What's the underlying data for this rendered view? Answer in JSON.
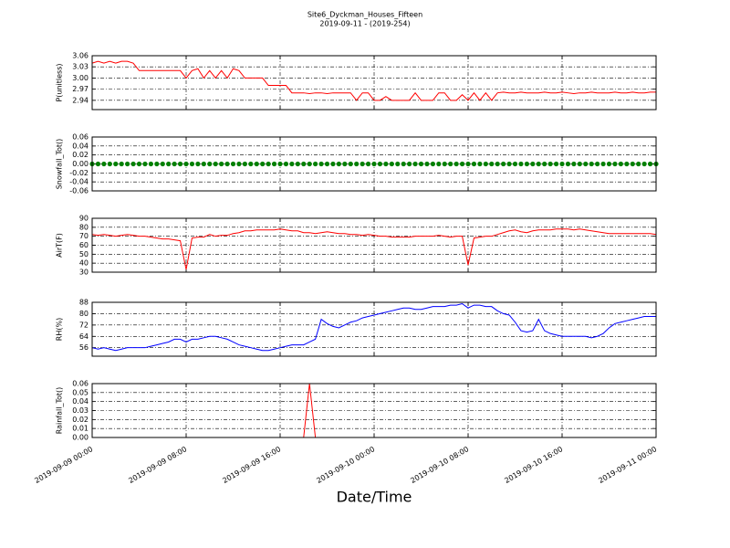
{
  "title": "Site6_Dyckman_Houses_Fifteen",
  "subtitle": "2019-09-11 - (2019-254)",
  "xlabel": "Date/Time",
  "xlim": [
    "2019-09-09 00:00",
    "2019-09-11 00:00"
  ],
  "xticks": [
    "2019-09-09 00:00",
    "2019-09-09 08:00",
    "2019-09-09 16:00",
    "2019-09-10 00:00",
    "2019-09-10 08:00",
    "2019-09-10 16:00",
    "2019-09-11 00:00"
  ],
  "grid": true,
  "x": [
    "2019-09-09 00:00",
    "2019-09-09 00:30",
    "2019-09-09 01:00",
    "2019-09-09 01:30",
    "2019-09-09 02:00",
    "2019-09-09 02:30",
    "2019-09-09 03:00",
    "2019-09-09 03:30",
    "2019-09-09 04:00",
    "2019-09-09 04:30",
    "2019-09-09 05:00",
    "2019-09-09 05:30",
    "2019-09-09 06:00",
    "2019-09-09 06:30",
    "2019-09-09 07:00",
    "2019-09-09 07:30",
    "2019-09-09 08:00",
    "2019-09-09 08:30",
    "2019-09-09 09:00",
    "2019-09-09 09:30",
    "2019-09-09 10:00",
    "2019-09-09 10:30",
    "2019-09-09 11:00",
    "2019-09-09 11:30",
    "2019-09-09 12:00",
    "2019-09-09 12:30",
    "2019-09-09 13:00",
    "2019-09-09 13:30",
    "2019-09-09 14:00",
    "2019-09-09 14:30",
    "2019-09-09 15:00",
    "2019-09-09 15:30",
    "2019-09-09 16:00",
    "2019-09-09 16:30",
    "2019-09-09 17:00",
    "2019-09-09 17:30",
    "2019-09-09 18:00",
    "2019-09-09 18:30",
    "2019-09-09 19:00",
    "2019-09-09 19:30",
    "2019-09-09 20:00",
    "2019-09-09 20:30",
    "2019-09-09 21:00",
    "2019-09-09 21:30",
    "2019-09-09 22:00",
    "2019-09-09 22:30",
    "2019-09-09 23:00",
    "2019-09-09 23:30",
    "2019-09-10 00:00",
    "2019-09-10 00:30",
    "2019-09-10 01:00",
    "2019-09-10 01:30",
    "2019-09-10 02:00",
    "2019-09-10 02:30",
    "2019-09-10 03:00",
    "2019-09-10 03:30",
    "2019-09-10 04:00",
    "2019-09-10 04:30",
    "2019-09-10 05:00",
    "2019-09-10 05:30",
    "2019-09-10 06:00",
    "2019-09-10 06:30",
    "2019-09-10 07:00",
    "2019-09-10 07:30",
    "2019-09-10 08:00",
    "2019-09-10 08:30",
    "2019-09-10 09:00",
    "2019-09-10 09:30",
    "2019-09-10 10:00",
    "2019-09-10 10:30",
    "2019-09-10 11:00",
    "2019-09-10 11:30",
    "2019-09-10 12:00",
    "2019-09-10 12:30",
    "2019-09-10 13:00",
    "2019-09-10 13:30",
    "2019-09-10 14:00",
    "2019-09-10 14:30",
    "2019-09-10 15:00",
    "2019-09-10 15:30",
    "2019-09-10 16:00",
    "2019-09-10 16:30",
    "2019-09-10 17:00",
    "2019-09-10 17:30",
    "2019-09-10 18:00",
    "2019-09-10 18:30",
    "2019-09-10 19:00",
    "2019-09-10 19:30",
    "2019-09-10 20:00",
    "2019-09-10 20:30",
    "2019-09-10 21:00",
    "2019-09-10 21:30",
    "2019-09-10 22:00",
    "2019-09-10 22:30",
    "2019-09-10 23:00",
    "2019-09-10 23:30",
    "2019-09-11 00:00"
  ],
  "chart_data": [
    {
      "type": "line",
      "ylabel": "P(unitless)",
      "color": "#ff0000",
      "ylim": [
        2.915,
        3.06
      ],
      "yticks": [
        2.94,
        2.97,
        {
          "value": 3,
          "label": "3.00"
        },
        3.03,
        3.06
      ],
      "values": [
        3.04,
        3.045,
        3.04,
        3.045,
        3.04,
        3.045,
        3.045,
        3.04,
        3.02,
        3.02,
        3.02,
        3.02,
        3.02,
        3.02,
        3.02,
        3.02,
        3.0,
        3.02,
        3.025,
        3.0,
        3.02,
        3.0,
        3.02,
        3.0,
        3.025,
        3.02,
        3.0,
        3.0,
        3.0,
        3.0,
        2.98,
        2.98,
        2.98,
        2.98,
        2.96,
        2.96,
        2.96,
        2.958,
        2.96,
        2.96,
        2.958,
        2.96,
        2.96,
        2.96,
        2.96,
        2.94,
        2.96,
        2.96,
        2.94,
        2.94,
        2.95,
        2.94,
        2.94,
        2.94,
        2.94,
        2.96,
        2.94,
        2.94,
        2.94,
        2.96,
        2.96,
        2.94,
        2.94,
        2.955,
        2.94,
        2.96,
        2.94,
        2.96,
        2.94,
        2.96,
        2.962,
        2.96,
        2.96,
        2.962,
        2.96,
        2.96,
        2.96,
        2.962,
        2.96,
        2.96,
        2.962,
        2.96,
        2.958,
        2.96,
        2.96,
        2.962,
        2.96,
        2.96,
        2.96,
        2.962,
        2.96,
        2.96,
        2.962,
        2.96,
        2.96,
        2.962,
        2.962
      ]
    },
    {
      "type": "scatter",
      "ylabel": "Snowfall_Tot()",
      "color": "#008000",
      "ylim": [
        -0.06,
        0.06
      ],
      "yticks": [
        -0.06,
        -0.04,
        -0.02,
        {
          "value": 0,
          "label": "0.00"
        },
        0.02,
        0.04,
        0.06
      ],
      "values": [
        0,
        0,
        0,
        0,
        0,
        0,
        0,
        0,
        0,
        0,
        0,
        0,
        0,
        0,
        0,
        0,
        0,
        0,
        0,
        0,
        0,
        0,
        0,
        0,
        0,
        0,
        0,
        0,
        0,
        0,
        0,
        0,
        0,
        0,
        0,
        0,
        0,
        0,
        0,
        0,
        0,
        0,
        0,
        0,
        0,
        0,
        0,
        0,
        0,
        0,
        0,
        0,
        0,
        0,
        0,
        0,
        0,
        0,
        0,
        0,
        0,
        0,
        0,
        0,
        0,
        0,
        0,
        0,
        0,
        0,
        0,
        0,
        0,
        0,
        0,
        0,
        0,
        0,
        0,
        0,
        0,
        0,
        0,
        0,
        0,
        0,
        0,
        0,
        0,
        0,
        0,
        0,
        0,
        0,
        0,
        0,
        0
      ]
    },
    {
      "type": "line",
      "ylabel": "AirT(F)",
      "color": "#ff0000",
      "ylim": [
        30,
        90
      ],
      "yticks": [
        30,
        40,
        50,
        60,
        70,
        80,
        90
      ],
      "values": [
        72,
        71,
        72,
        71,
        70,
        71,
        72,
        71,
        70,
        70,
        69,
        68,
        67,
        67,
        66,
        65,
        33,
        68,
        69,
        69,
        72,
        70,
        71,
        71,
        73,
        74,
        76,
        76,
        77,
        77,
        77,
        77,
        78,
        77,
        76,
        76,
        74,
        74,
        73,
        74,
        75,
        74,
        73,
        73,
        72,
        72,
        71,
        72,
        71,
        70,
        70,
        69,
        69,
        69,
        69,
        70,
        70,
        70,
        70,
        71,
        70,
        69,
        70,
        70,
        38,
        68,
        69,
        70,
        70,
        72,
        74,
        76,
        77,
        75,
        74,
        76,
        77,
        77,
        77,
        78,
        78,
        78,
        77,
        78,
        77,
        76,
        75,
        74,
        73,
        73,
        73,
        73,
        73,
        73,
        73,
        73,
        72
      ]
    },
    {
      "type": "line",
      "ylabel": "RH(%)",
      "color": "#0000ff",
      "ylim": [
        50,
        88
      ],
      "yticks": [
        56,
        64,
        72,
        80,
        88
      ],
      "values": [
        56,
        55,
        56,
        55,
        54,
        55,
        56,
        56,
        56,
        56,
        57,
        58,
        59,
        60,
        62,
        62,
        60,
        62,
        62,
        63,
        64,
        64,
        63,
        62,
        60,
        58,
        57,
        56,
        55,
        54,
        54,
        55,
        56,
        57,
        58,
        58,
        58,
        60,
        62,
        76,
        73,
        71,
        70,
        72,
        74,
        75,
        77,
        78,
        79,
        80,
        81,
        82,
        83,
        84,
        84,
        83,
        83,
        84,
        85,
        85,
        85,
        86,
        86,
        87,
        84,
        86,
        86,
        85,
        85,
        82,
        80,
        79,
        74,
        68,
        67,
        68,
        76,
        68,
        66,
        65,
        64,
        64,
        64,
        64,
        64,
        63,
        64,
        66,
        70,
        73,
        74,
        75,
        76,
        77,
        78,
        78,
        78
      ]
    },
    {
      "type": "line",
      "ylabel": "Rainfall_Tot()",
      "color": "#ff0000",
      "ylim": [
        0,
        0.06
      ],
      "yticks": [
        {
          "value": 0,
          "label": "0.00"
        },
        0.01,
        0.02,
        0.03,
        0.04,
        0.05,
        0.06
      ],
      "values": [
        0,
        0,
        0,
        0,
        0,
        0,
        0,
        0,
        0,
        0,
        0,
        0,
        0,
        0,
        0,
        0,
        0,
        0,
        0,
        0,
        0,
        0,
        0,
        0,
        0,
        0,
        0,
        0,
        0,
        0,
        0,
        0,
        0,
        0,
        0,
        0,
        0,
        0.06,
        0,
        0,
        0,
        0,
        0,
        0,
        0,
        0,
        0,
        0,
        0,
        0,
        0,
        0,
        0,
        0,
        0,
        0,
        0,
        0,
        0,
        0,
        0,
        0,
        0,
        0,
        0,
        0,
        0,
        0,
        0,
        0,
        0,
        0,
        0,
        0,
        0,
        0,
        0,
        0,
        0,
        0,
        0,
        0,
        0,
        0,
        0,
        0,
        0,
        0,
        0,
        0,
        0,
        0,
        0,
        0,
        0,
        0,
        0
      ]
    }
  ]
}
